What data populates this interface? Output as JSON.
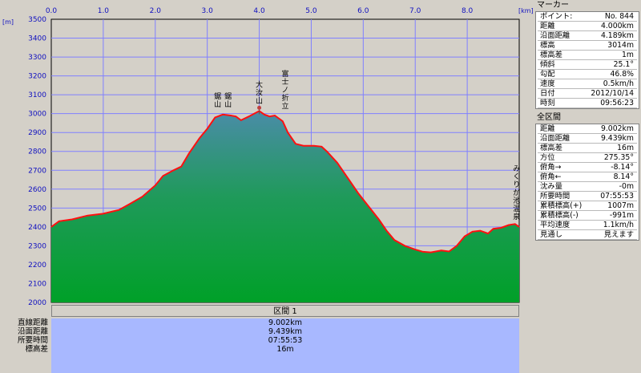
{
  "chart_data": {
    "type": "area",
    "x_unit": "[km]",
    "y_unit": "[m]",
    "xlim": [
      0,
      9.0
    ],
    "ylim": [
      2000,
      3500
    ],
    "x_ticks": [
      "0.0",
      "1.0",
      "2.0",
      "3.0",
      "4.0",
      "5.0",
      "6.0",
      "7.0",
      "8.0"
    ],
    "y_ticks": [
      "2000",
      "2100",
      "2200",
      "2300",
      "2400",
      "2500",
      "2600",
      "2700",
      "2800",
      "2900",
      "3000",
      "3100",
      "3200",
      "3300",
      "3400",
      "3500"
    ],
    "grid": true,
    "marker_x": 4.0,
    "profile": [
      [
        0.0,
        2400
      ],
      [
        0.15,
        2430
      ],
      [
        0.4,
        2440
      ],
      [
        0.7,
        2460
      ],
      [
        1.0,
        2470
      ],
      [
        1.3,
        2490
      ],
      [
        1.5,
        2520
      ],
      [
        1.75,
        2560
      ],
      [
        2.0,
        2620
      ],
      [
        2.15,
        2670
      ],
      [
        2.35,
        2700
      ],
      [
        2.5,
        2720
      ],
      [
        2.65,
        2790
      ],
      [
        2.85,
        2870
      ],
      [
        3.0,
        2920
      ],
      [
        3.15,
        2980
      ],
      [
        3.3,
        2995
      ],
      [
        3.45,
        2990
      ],
      [
        3.55,
        2985
      ],
      [
        3.65,
        2965
      ],
      [
        3.8,
        2985
      ],
      [
        3.9,
        3000
      ],
      [
        4.0,
        3014
      ],
      [
        4.1,
        2995
      ],
      [
        4.2,
        2985
      ],
      [
        4.3,
        2990
      ],
      [
        4.45,
        2960
      ],
      [
        4.55,
        2900
      ],
      [
        4.7,
        2840
      ],
      [
        4.85,
        2830
      ],
      [
        5.05,
        2830
      ],
      [
        5.2,
        2825
      ],
      [
        5.3,
        2800
      ],
      [
        5.5,
        2740
      ],
      [
        5.7,
        2660
      ],
      [
        5.9,
        2580
      ],
      [
        6.1,
        2510
      ],
      [
        6.3,
        2440
      ],
      [
        6.45,
        2380
      ],
      [
        6.6,
        2330
      ],
      [
        6.8,
        2300
      ],
      [
        7.0,
        2280
      ],
      [
        7.15,
        2268
      ],
      [
        7.3,
        2265
      ],
      [
        7.5,
        2275
      ],
      [
        7.65,
        2270
      ],
      [
        7.8,
        2300
      ],
      [
        7.95,
        2350
      ],
      [
        8.1,
        2375
      ],
      [
        8.25,
        2380
      ],
      [
        8.4,
        2365
      ],
      [
        8.5,
        2390
      ],
      [
        8.65,
        2395
      ],
      [
        8.8,
        2410
      ],
      [
        8.92,
        2415
      ],
      [
        9.0,
        2400
      ]
    ],
    "annotations": [
      {
        "x": 3.2,
        "y": 2995,
        "label": "鋸山"
      },
      {
        "x": 3.4,
        "y": 2995,
        "label": "鋸山"
      },
      {
        "x": 4.0,
        "y": 3014,
        "label": "大汝山"
      },
      {
        "x": 4.5,
        "y": 2985,
        "label": "富士ノ折立"
      },
      {
        "x": 8.95,
        "y": 2400,
        "label": "みくりが池温泉"
      }
    ],
    "colors": {
      "plot_bg": "#d4d0c8",
      "grid": "#8080ff",
      "area_bottom": "#00a028",
      "area_top": "#4a8ca8",
      "line": "#ff1010"
    }
  },
  "marker_panel": {
    "title": "マーカー",
    "rows": [
      {
        "k": "ポイント:",
        "v": "No. 844"
      },
      {
        "k": "距離",
        "v": "4.000km"
      },
      {
        "k": "沿面距離",
        "v": "4.189km"
      },
      {
        "k": "標高",
        "v": "3014m"
      },
      {
        "k": "標高差",
        "v": "1m"
      },
      {
        "k": "傾斜",
        "v": "25.1°"
      },
      {
        "k": "勾配",
        "v": "46.8%"
      },
      {
        "k": "速度",
        "v": "0.5km/h"
      },
      {
        "k": "日付",
        "v": "2012/10/14"
      },
      {
        "k": "時刻",
        "v": "09:56:23"
      }
    ]
  },
  "section_panel": {
    "title": "全区間",
    "rows": [
      {
        "k": "距離",
        "v": "9.002km"
      },
      {
        "k": "沿面距離",
        "v": "9.439km"
      },
      {
        "k": "標高差",
        "v": "16m"
      },
      {
        "k": "方位",
        "v": "275.35°"
      },
      {
        "k": "俯角→",
        "v": "-8.14°"
      },
      {
        "k": "俯角←",
        "v": "8.14°"
      },
      {
        "k": "沈み量",
        "v": "-0m"
      },
      {
        "k": "所要時間",
        "v": "07:55:53"
      },
      {
        "k": "累積標高(+)",
        "v": "1007m"
      },
      {
        "k": "累積標高(-)",
        "v": "-991m"
      },
      {
        "k": "平均速度",
        "v": "1.1km/h"
      },
      {
        "k": "見通し",
        "v": "見えます"
      }
    ]
  },
  "bottom_table": {
    "header": "区間 1",
    "rows": [
      {
        "label": "直線距離",
        "value": "9.002km"
      },
      {
        "label": "沿面距離",
        "value": "9.439km"
      },
      {
        "label": "所要時間",
        "value": "07:55:53"
      },
      {
        "label": "標高差",
        "value": "16m"
      }
    ]
  }
}
